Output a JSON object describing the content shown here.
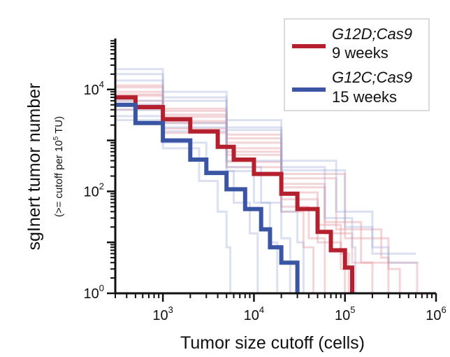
{
  "chart_data": {
    "type": "line",
    "x_scale": "log",
    "y_scale": "log",
    "xlabel": "Tumor size cutoff (cells)",
    "ylabel": "sgInert tumor number",
    "ylabel_sub": "(>= cutoff per 10^5 TU)",
    "ylabel_sub_parts": {
      "prefix": "(>= cutoff per 10",
      "exp": "5",
      "suffix": " TU)"
    },
    "xlim": [
      300,
      1000000
    ],
    "ylim": [
      1,
      100000
    ],
    "x_ticks": [
      {
        "value": 1000,
        "base": "10",
        "exp": "3"
      },
      {
        "value": 10000,
        "base": "10",
        "exp": "4"
      },
      {
        "value": 100000,
        "base": "10",
        "exp": "5"
      },
      {
        "value": 1000000,
        "base": "10",
        "exp": "6"
      }
    ],
    "y_ticks": [
      {
        "value": 1,
        "base": "10",
        "exp": "0"
      },
      {
        "value": 100,
        "base": "10",
        "exp": "2"
      },
      {
        "value": 10000,
        "base": "10",
        "exp": "4"
      }
    ],
    "legend": {
      "position": "top-right",
      "entries": [
        {
          "series": "G12D",
          "line1": "G12D;Cas9",
          "line2": "9 weeks"
        },
        {
          "series": "G12C",
          "line1": "G12C;Cas9",
          "line2": "15 weeks"
        }
      ]
    },
    "series": [
      {
        "name": "G12D;Cas9 9 weeks",
        "id": "G12D",
        "color": "#b5202e",
        "points": [
          [
            300,
            7000
          ],
          [
            500,
            4500
          ],
          [
            1000,
            2600
          ],
          [
            2000,
            1500
          ],
          [
            4000,
            750
          ],
          [
            6000,
            420
          ],
          [
            10000,
            220
          ],
          [
            20000,
            90
          ],
          [
            30000,
            45
          ],
          [
            50000,
            16
          ],
          [
            70000,
            7
          ],
          [
            100000,
            3.2
          ],
          [
            120000,
            1
          ]
        ]
      },
      {
        "name": "G12C;Cas9 15 weeks",
        "id": "G12C",
        "color": "#3a55a4",
        "points": [
          [
            300,
            5000
          ],
          [
            500,
            2200
          ],
          [
            1000,
            1000
          ],
          [
            2000,
            420
          ],
          [
            3000,
            230
          ],
          [
            5000,
            110
          ],
          [
            8000,
            45
          ],
          [
            12000,
            18
          ],
          [
            15000,
            8
          ],
          [
            20000,
            4
          ],
          [
            28000,
            4
          ],
          [
            30000,
            1
          ]
        ]
      }
    ],
    "replicates": [
      {
        "group": "G12D",
        "points": [
          [
            300,
            9000
          ],
          [
            1000,
            3200
          ],
          [
            5000,
            900
          ],
          [
            20000,
            140
          ],
          [
            60000,
            25
          ],
          [
            150000,
            4
          ],
          [
            200000,
            1
          ]
        ]
      },
      {
        "group": "G12D",
        "points": [
          [
            300,
            6000
          ],
          [
            1000,
            2200
          ],
          [
            5000,
            520
          ],
          [
            20000,
            70
          ],
          [
            50000,
            10
          ],
          [
            90000,
            3
          ],
          [
            100000,
            1
          ]
        ]
      },
      {
        "group": "G12D",
        "points": [
          [
            300,
            11000
          ],
          [
            1000,
            3800
          ],
          [
            5000,
            1100
          ],
          [
            20000,
            180
          ],
          [
            80000,
            18
          ],
          [
            250000,
            5
          ],
          [
            300000,
            1
          ]
        ]
      },
      {
        "group": "G12D",
        "points": [
          [
            300,
            5000
          ],
          [
            1000,
            1700
          ],
          [
            5000,
            380
          ],
          [
            20000,
            50
          ],
          [
            40000,
            12
          ],
          [
            60000,
            1
          ]
        ]
      },
      {
        "group": "G12D",
        "points": [
          [
            300,
            8000
          ],
          [
            1000,
            2900
          ],
          [
            5000,
            700
          ],
          [
            20000,
            120
          ],
          [
            60000,
            15
          ],
          [
            120000,
            4
          ],
          [
            600000,
            4
          ],
          [
            620000,
            1
          ]
        ]
      },
      {
        "group": "G12D",
        "points": [
          [
            300,
            7500
          ],
          [
            1000,
            2400
          ],
          [
            5000,
            600
          ],
          [
            20000,
            95
          ],
          [
            50000,
            22
          ],
          [
            90000,
            6
          ],
          [
            110000,
            1
          ]
        ]
      },
      {
        "group": "G12D",
        "points": [
          [
            300,
            12000
          ],
          [
            1000,
            4200
          ],
          [
            5000,
            1300
          ],
          [
            20000,
            220
          ],
          [
            100000,
            12
          ],
          [
            300000,
            3
          ],
          [
            400000,
            1
          ]
        ]
      },
      {
        "group": "G12D",
        "points": [
          [
            300,
            4000
          ],
          [
            1000,
            1400
          ],
          [
            5000,
            300
          ],
          [
            20000,
            40
          ],
          [
            35000,
            8
          ],
          [
            45000,
            1
          ]
        ]
      },
      {
        "group": "G12C",
        "points": [
          [
            300,
            25000
          ],
          [
            1000,
            9000
          ],
          [
            5000,
            2500
          ],
          [
            20000,
            400
          ],
          [
            80000,
            40
          ],
          [
            200000,
            8
          ],
          [
            300000,
            4
          ],
          [
            640000,
            4
          ]
        ]
      },
      {
        "group": "G12C",
        "points": [
          [
            300,
            15000
          ],
          [
            1000,
            6000
          ],
          [
            5000,
            1600
          ],
          [
            20000,
            260
          ],
          [
            100000,
            20
          ],
          [
            200000,
            6
          ],
          [
            600000,
            6
          ]
        ]
      },
      {
        "group": "G12C",
        "points": [
          [
            300,
            20000
          ],
          [
            1000,
            7000
          ],
          [
            5000,
            1800
          ],
          [
            20000,
            300
          ],
          [
            60000,
            30
          ],
          [
            120000,
            8
          ],
          [
            130000,
            1
          ]
        ]
      },
      {
        "group": "G12C",
        "points": [
          [
            300,
            4000
          ],
          [
            1000,
            1500
          ],
          [
            5000,
            250
          ],
          [
            10000,
            60
          ],
          [
            15000,
            10
          ],
          [
            18000,
            1
          ]
        ]
      },
      {
        "group": "G12C",
        "points": [
          [
            300,
            3000
          ],
          [
            1000,
            900
          ],
          [
            3000,
            250
          ],
          [
            6000,
            60
          ],
          [
            9000,
            15
          ],
          [
            11000,
            1
          ]
        ]
      },
      {
        "group": "G12C",
        "points": [
          [
            300,
            6000
          ],
          [
            1000,
            2200
          ],
          [
            5000,
            400
          ],
          [
            20000,
            40
          ],
          [
            30000,
            10
          ],
          [
            35000,
            1
          ]
        ]
      },
      {
        "group": "G12C",
        "points": [
          [
            300,
            2500
          ],
          [
            1000,
            700
          ],
          [
            2500,
            160
          ],
          [
            4000,
            40
          ],
          [
            5000,
            8
          ],
          [
            5500,
            1
          ]
        ]
      },
      {
        "group": "G12C",
        "points": [
          [
            300,
            5000
          ],
          [
            1000,
            1800
          ],
          [
            5000,
            300
          ],
          [
            12000,
            60
          ],
          [
            20000,
            12
          ],
          [
            25000,
            1
          ]
        ]
      }
    ]
  }
}
